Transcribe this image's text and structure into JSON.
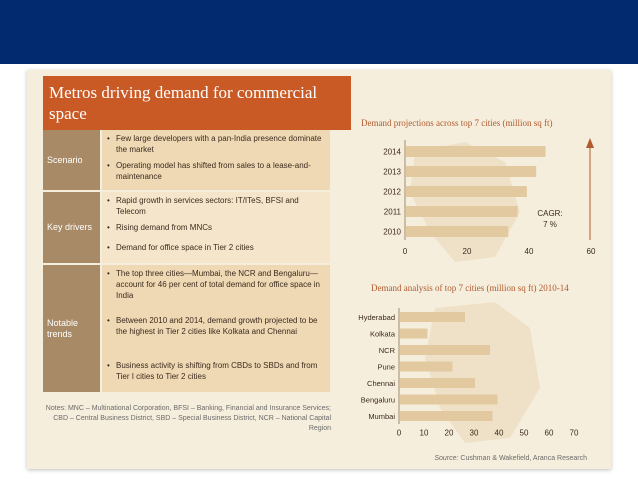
{
  "slide": {
    "title": "Metros driving demand for commercial space",
    "rows": [
      {
        "label": "Scenario",
        "bullets": [
          "Few large developers with a pan-India presence dominate the market",
          "Operating model has shifted from sales to a lease-and-maintenance"
        ]
      },
      {
        "label": "Key drivers",
        "bullets": [
          "Rapid growth in services sectors: IT/ITeS, BFSI and Telecom",
          "Rising demand from MNCs",
          "Demand for office space in Tier 2 cities"
        ]
      },
      {
        "label": "Notable trends",
        "bullets": [
          "The top three cities—Mumbai, the NCR and Bengaluru—account for 46 per cent of total demand for office space in India",
          "Between 2010 and 2014, demand growth projected to be the highest in Tier 2 cities like Kolkata and Chennai",
          "Business activity is shifting from CBDs to SBDs and from Tier I cities to Tier 2 cities"
        ]
      }
    ],
    "notes": "Notes: MNC – Multinational Corporation, BFSI – Banking, Financial and Insurance Services; CBD – Central Business District, SBD – Special Business District, NCR – National Capital Region",
    "source_label": "Source:",
    "source_text": "Cushman & Wakefield, Aranca Research"
  },
  "colors": {
    "topbar": "#022a6e",
    "title_band": "#c95a26",
    "bar": "#e3c9a0",
    "label_col": "#a88a66"
  },
  "chart_data": [
    {
      "type": "bar",
      "orientation": "horizontal",
      "title": "Demand projections across top 7 cities (million sq ft)",
      "categories": [
        "2014",
        "2013",
        "2012",
        "2011",
        "2010"
      ],
      "values": [
        45,
        42,
        39,
        36,
        33
      ],
      "xticks": [
        0,
        20,
        40,
        60
      ],
      "xlim": [
        0,
        60
      ],
      "annotation": {
        "line1": "CAGR:",
        "line2": "7 %"
      }
    },
    {
      "type": "bar",
      "orientation": "horizontal",
      "title": "Demand analysis of top 7 cities (million sq ft) 2010-14",
      "categories": [
        "Hyderabad",
        "Kolkata",
        "NCR",
        "Pune",
        "Chennai",
        "Bengaluru",
        "Mumbai"
      ],
      "values": [
        26,
        11,
        36,
        21,
        30,
        39,
        37
      ],
      "xticks": [
        0,
        10,
        20,
        30,
        40,
        50,
        60,
        70
      ],
      "xlim": [
        0,
        70
      ]
    }
  ]
}
